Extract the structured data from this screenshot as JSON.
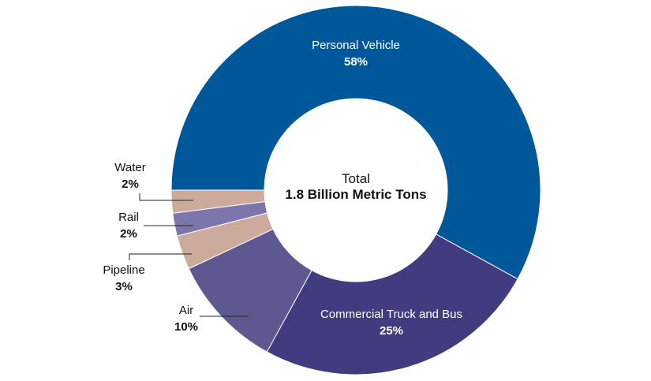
{
  "chart_data": {
    "type": "pie",
    "center_label": {
      "line1": "Total",
      "line2": "1.8 Billion Metric Tons"
    },
    "slices": [
      {
        "label": "Personal Vehicle",
        "display": "58%",
        "value": 58,
        "color": "#00579a",
        "label_color": "#ffffff"
      },
      {
        "label": "Commercial Truck and Bus",
        "display": "25%",
        "value": 25,
        "color": "#413b80",
        "label_color": "#ffffff"
      },
      {
        "label": "Air",
        "display": "10%",
        "value": 10,
        "color": "#5e5891",
        "label_color": "#111111"
      },
      {
        "label": "Pipeline",
        "display": "3%",
        "value": 3,
        "color": "#ccab9d",
        "label_color": "#111111"
      },
      {
        "label": "Rail",
        "display": "2%",
        "value": 2,
        "color": "#7d76ad",
        "label_color": "#111111"
      },
      {
        "label": "Water",
        "display": "2%",
        "value": 2,
        "color": "#ccab9d",
        "label_color": "#111111"
      }
    ]
  }
}
